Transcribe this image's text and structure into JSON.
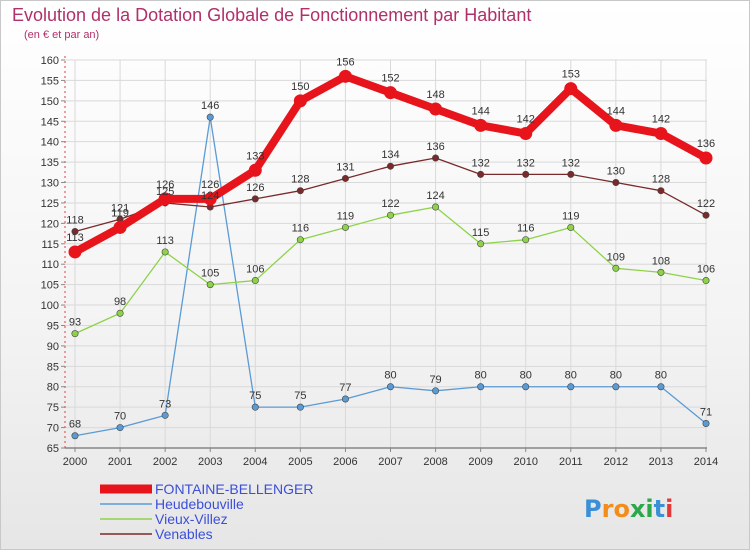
{
  "brand": {
    "name": "Proxiti",
    "letters": [
      {
        "char": "P",
        "color": "#3a8fd6"
      },
      {
        "char": "r",
        "color": "#f28c1a"
      },
      {
        "char": "o",
        "color": "#f28c1a"
      },
      {
        "char": "x",
        "color": "#2aa84a"
      },
      {
        "char": "i",
        "color": "#2aa84a"
      },
      {
        "char": "t",
        "color": "#3a8fd6"
      },
      {
        "char": "i",
        "color": "#e03a3a"
      }
    ]
  },
  "chart_data": {
    "type": "line",
    "title": "Evolution de la Dotation Globale de Fonctionnement par Habitant",
    "subtitle": "(en € et par an)",
    "xlabel": "",
    "ylabel": "",
    "ylim": [
      65,
      160
    ],
    "ytick_step": 5,
    "grid": true,
    "legend_position": "bottom-left",
    "categories": [
      "2000",
      "2001",
      "2002",
      "2003",
      "2004",
      "2005",
      "2006",
      "2007",
      "2008",
      "2009",
      "2010",
      "2011",
      "2012",
      "2013",
      "2014"
    ],
    "series": [
      {
        "name": "FONTAINE-BELLENGER",
        "color": "#e8141b",
        "values": [
          113,
          119,
          126,
          126,
          133,
          150,
          156,
          152,
          148,
          144,
          142,
          153,
          144,
          142,
          136
        ],
        "labels": [
          "113",
          "119",
          "126",
          "126",
          "133",
          "150",
          "156",
          "152",
          "148",
          "144",
          "142",
          "153",
          "144",
          "142",
          "136"
        ]
      },
      {
        "name": "Heudebouville",
        "color": "#5b9bd5",
        "values": [
          68,
          70,
          73,
          146,
          75,
          75,
          77,
          80,
          79,
          80,
          80,
          80,
          80,
          80,
          71
        ],
        "labels": [
          "68",
          "70",
          "73",
          "146",
          "75",
          "75",
          "77",
          "80",
          "79",
          "80",
          "80",
          "80",
          "80",
          "80",
          "71"
        ]
      },
      {
        "name": "Vieux-Villez",
        "color": "#8ed24a",
        "values": [
          93,
          98,
          113,
          105,
          106,
          116,
          119,
          122,
          124,
          115,
          116,
          119,
          109,
          108,
          106
        ],
        "labels": [
          "93",
          "98",
          "113",
          "105",
          "106",
          "116",
          "119",
          "122",
          "124",
          "115",
          "116",
          "119",
          "109",
          "108",
          "106"
        ]
      },
      {
        "name": "Venables",
        "color": "#7a2a2a",
        "values": [
          118,
          121,
          125,
          124,
          126,
          128,
          131,
          134,
          136,
          132,
          132,
          132,
          130,
          128,
          122
        ],
        "labels": [
          "118",
          "121",
          "125",
          "124",
          "126",
          "128",
          "131",
          "134",
          "136",
          "132",
          "132",
          "132",
          "130",
          "128",
          "122"
        ]
      }
    ]
  }
}
